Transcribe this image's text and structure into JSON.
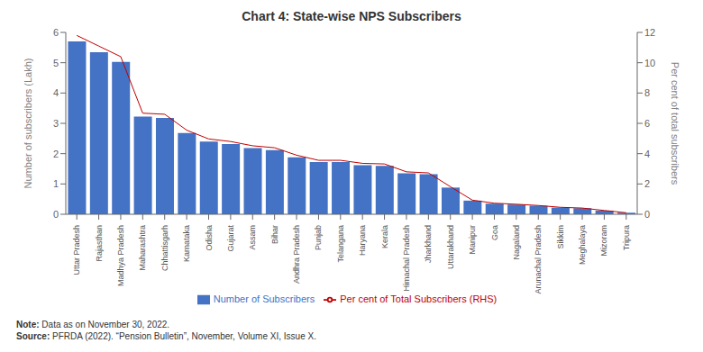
{
  "chart_data": {
    "type": "bar",
    "title": "Chart 4: State-wise NPS Subscribers",
    "categories": [
      "Uttar Pradesh",
      "Rajasthan",
      "Madhya Pradesh",
      "Maharashtra",
      "Chhattisgarh",
      "Karnataka",
      "Odisha",
      "Gujarat",
      "Assam",
      "Bihar",
      "Andhra Pradesh",
      "Punjab",
      "Telangana",
      "Haryana",
      "Kerala",
      "Himachal Pradesh",
      "Jharkhand",
      "Uttarakhand",
      "Manipur",
      "Goa",
      "Nagaland",
      "Arunachal Pradesh",
      "Sikkim",
      "Meghalaya",
      "Mizoram",
      "Tripura"
    ],
    "series": [
      {
        "name": "Number of Subscribers",
        "type": "bar",
        "color": "#4472C4",
        "values": [
          5.7,
          5.35,
          5.03,
          3.22,
          3.18,
          2.68,
          2.4,
          2.32,
          2.18,
          2.12,
          1.88,
          1.72,
          1.72,
          1.62,
          1.6,
          1.35,
          1.32,
          0.88,
          0.45,
          0.35,
          0.32,
          0.28,
          0.22,
          0.2,
          0.12,
          0.05
        ]
      },
      {
        "name": "Per cent of Total Subscribers (RHS)",
        "type": "line",
        "color": "#C00000",
        "axis": "y2",
        "values": [
          11.8,
          11.1,
          10.4,
          6.67,
          6.6,
          5.55,
          4.97,
          4.8,
          4.52,
          4.39,
          3.9,
          3.56,
          3.56,
          3.36,
          3.32,
          2.8,
          2.73,
          1.82,
          0.93,
          0.73,
          0.66,
          0.58,
          0.46,
          0.41,
          0.25,
          0.1
        ]
      }
    ],
    "ylabel": "Number of subscribers (Lakh)",
    "y2label": "Per cent of total subscribers",
    "ylim": [
      0,
      6
    ],
    "yticks": [
      0,
      1,
      2,
      3,
      4,
      5,
      6
    ],
    "y2lim": [
      0,
      12
    ],
    "y2ticks": [
      0,
      2,
      4,
      6,
      8,
      10,
      12
    ],
    "grid": false,
    "legend": "bottom",
    "annotations": [
      {
        "label": "Note:",
        "text": "Data as on November 30, 2022."
      },
      {
        "label": "Source:",
        "text": "PFRDA (2022). “Pension Bulletin”, November, Volume XI, Issue X."
      }
    ]
  }
}
